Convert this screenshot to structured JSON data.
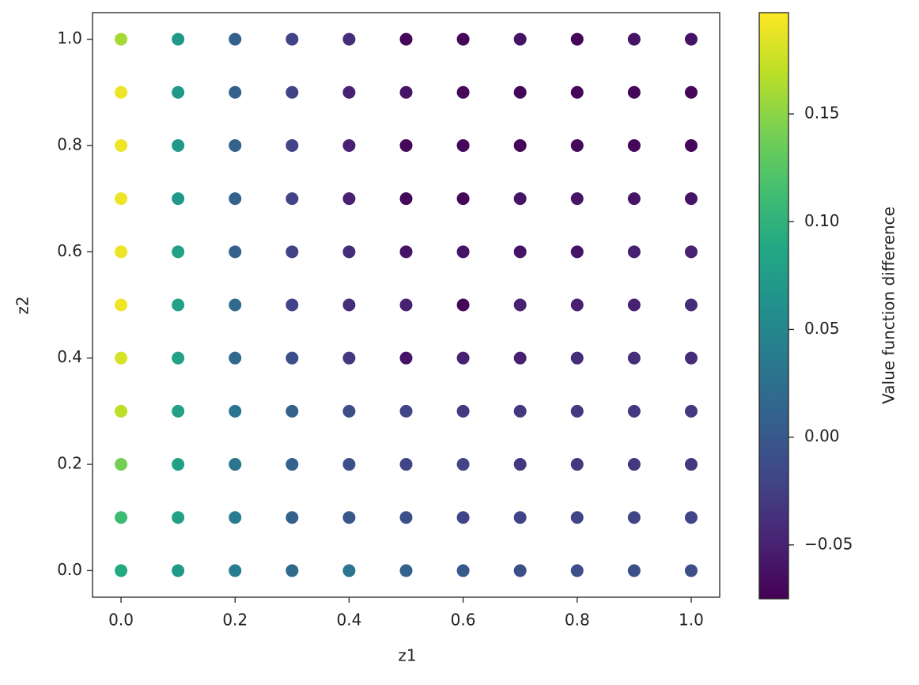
{
  "chart_data": {
    "type": "scatter",
    "x_label": "z1",
    "y_label": "z2",
    "colorbar_label": "Value function difference",
    "colormap": "viridis",
    "xlim": [
      -0.05,
      1.05
    ],
    "ylim": [
      -0.05,
      1.05
    ],
    "xticks": [
      {
        "value": 0,
        "label": "0.0"
      },
      0.2,
      0.4,
      0.6,
      0.8,
      {
        "value": 1,
        "label": "1.0"
      }
    ],
    "yticks": [
      {
        "value": 0,
        "label": "0.0"
      },
      0.2,
      0.4,
      0.6,
      0.8,
      {
        "value": 1,
        "label": "1.0"
      }
    ],
    "clim": [
      -0.075,
      0.197
    ],
    "cticks": [
      0.15,
      {
        "value": 0.1,
        "label": "0.10"
      },
      0.05,
      {
        "value": 0,
        "label": "0.00"
      },
      {
        "value": -0.05,
        "label": "−0.05"
      }
    ],
    "x": [
      0,
      0.1,
      0.2,
      0.3,
      0.4,
      0.5,
      0.6,
      0.7,
      0.8,
      0.9,
      1,
      0,
      0.1,
      0.2,
      0.3,
      0.4,
      0.5,
      0.6,
      0.7,
      0.8,
      0.9,
      1,
      0,
      0.1,
      0.2,
      0.3,
      0.4,
      0.5,
      0.6,
      0.7,
      0.8,
      0.9,
      1,
      0,
      0.1,
      0.2,
      0.3,
      0.4,
      0.5,
      0.6,
      0.7,
      0.8,
      0.9,
      1,
      0,
      0.1,
      0.2,
      0.3,
      0.4,
      0.5,
      0.6,
      0.7,
      0.8,
      0.9,
      1,
      0,
      0.1,
      0.2,
      0.3,
      0.4,
      0.5,
      0.6,
      0.7,
      0.8,
      0.9,
      1,
      0,
      0.1,
      0.2,
      0.3,
      0.4,
      0.5,
      0.6,
      0.7,
      0.8,
      0.9,
      1,
      0,
      0.1,
      0.2,
      0.3,
      0.4,
      0.5,
      0.6,
      0.7,
      0.8,
      0.9,
      1,
      0,
      0.1,
      0.2,
      0.3,
      0.4,
      0.5,
      0.6,
      0.7,
      0.8,
      0.9,
      1,
      0,
      0.1,
      0.2,
      0.3,
      0.4,
      0.5,
      0.6,
      0.7,
      0.8,
      0.9,
      1,
      0,
      0.1,
      0.2,
      0.3,
      0.4,
      0.5,
      0.6,
      0.7,
      0.8,
      0.9,
      1
    ],
    "y": [
      0,
      0,
      0,
      0,
      0,
      0,
      0,
      0,
      0,
      0,
      0,
      0.1,
      0.1,
      0.1,
      0.1,
      0.1,
      0.1,
      0.1,
      0.1,
      0.1,
      0.1,
      0.1,
      0.2,
      0.2,
      0.2,
      0.2,
      0.2,
      0.2,
      0.2,
      0.2,
      0.2,
      0.2,
      0.2,
      0.3,
      0.3,
      0.3,
      0.3,
      0.3,
      0.3,
      0.3,
      0.3,
      0.3,
      0.3,
      0.3,
      0.4,
      0.4,
      0.4,
      0.4,
      0.4,
      0.4,
      0.4,
      0.4,
      0.4,
      0.4,
      0.4,
      0.5,
      0.5,
      0.5,
      0.5,
      0.5,
      0.5,
      0.5,
      0.5,
      0.5,
      0.5,
      0.5,
      0.6,
      0.6,
      0.6,
      0.6,
      0.6,
      0.6,
      0.6,
      0.6,
      0.6,
      0.6,
      0.6,
      0.7,
      0.7,
      0.7,
      0.7,
      0.7,
      0.7,
      0.7,
      0.7,
      0.7,
      0.7,
      0.7,
      0.8,
      0.8,
      0.8,
      0.8,
      0.8,
      0.8,
      0.8,
      0.8,
      0.8,
      0.8,
      0.8,
      0.9,
      0.9,
      0.9,
      0.9,
      0.9,
      0.9,
      0.9,
      0.9,
      0.9,
      0.9,
      0.9,
      1,
      1,
      1,
      1,
      1,
      1,
      1,
      1,
      1,
      1,
      1
    ],
    "values": [
      0.09,
      0.07,
      0.04,
      0.02,
      0.03,
      0.01,
      0.0,
      -0.01,
      -0.01,
      -0.01,
      -0.01,
      0.11,
      0.08,
      0.04,
      0.01,
      0.0,
      -0.01,
      -0.02,
      -0.02,
      -0.02,
      -0.02,
      -0.02,
      0.14,
      0.08,
      0.03,
      0.01,
      -0.01,
      -0.02,
      -0.02,
      -0.03,
      -0.03,
      -0.03,
      -0.03,
      0.17,
      0.08,
      0.03,
      0.01,
      -0.01,
      -0.02,
      -0.03,
      -0.03,
      -0.03,
      -0.03,
      -0.03,
      0.18,
      0.08,
      0.02,
      -0.01,
      -0.03,
      -0.06,
      -0.05,
      -0.05,
      -0.04,
      -0.04,
      -0.04,
      0.19,
      0.08,
      0.02,
      -0.02,
      -0.04,
      -0.05,
      -0.07,
      -0.05,
      -0.05,
      -0.05,
      -0.04,
      0.19,
      0.08,
      0.01,
      -0.02,
      -0.04,
      -0.06,
      -0.06,
      -0.06,
      -0.06,
      -0.05,
      -0.05,
      0.19,
      0.07,
      0.01,
      -0.02,
      -0.05,
      -0.07,
      -0.07,
      -0.06,
      -0.06,
      -0.06,
      -0.06,
      0.19,
      0.07,
      0.01,
      -0.02,
      -0.05,
      -0.07,
      -0.07,
      -0.07,
      -0.07,
      -0.07,
      -0.07,
      0.19,
      0.07,
      0.01,
      -0.02,
      -0.05,
      -0.06,
      -0.07,
      -0.07,
      -0.07,
      -0.07,
      -0.07,
      0.16,
      0.07,
      0.01,
      -0.02,
      -0.04,
      -0.07,
      -0.07,
      -0.06,
      -0.07,
      -0.06,
      -0.06
    ]
  }
}
